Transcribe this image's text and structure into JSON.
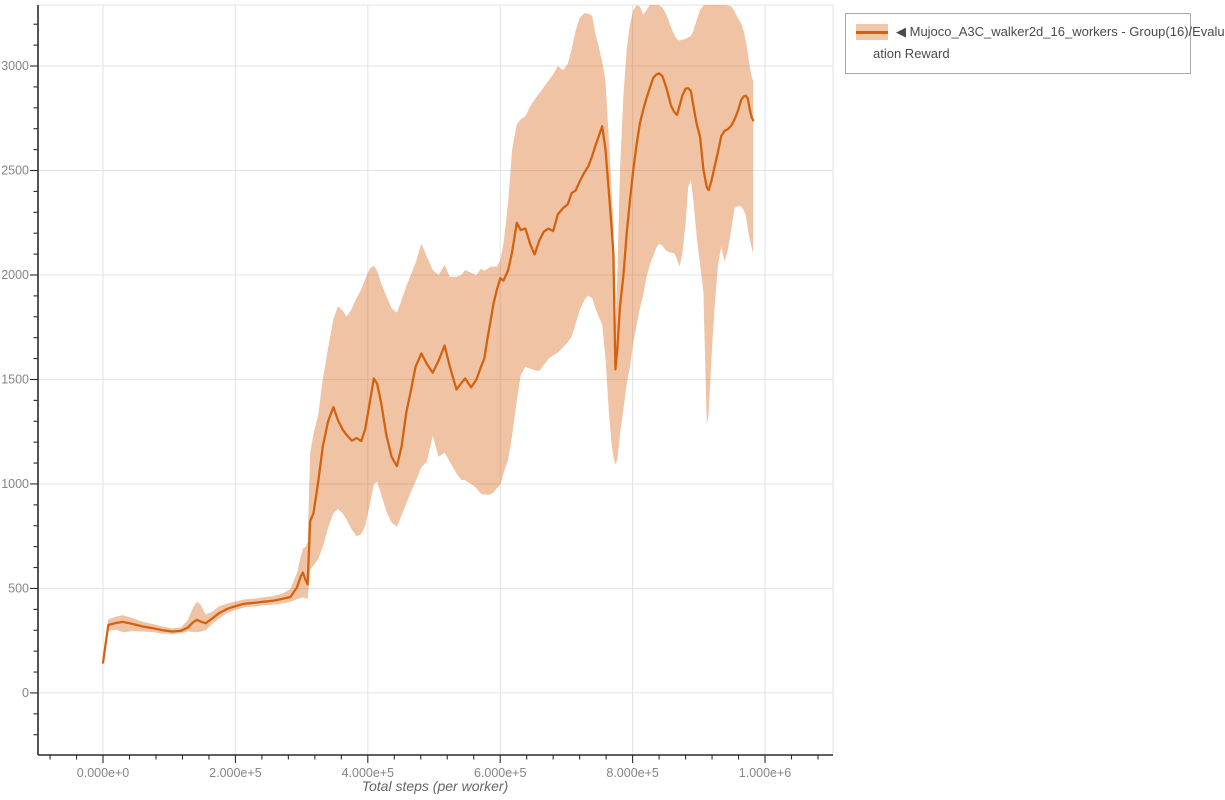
{
  "window": {
    "background": "#ffffff"
  },
  "legend": {
    "line1": "◀ Mujoco_A3C_walker2d_16_workers - Group(16)/Evalu",
    "line2": "ation Reward",
    "series_full_name": "Mujoco_A3C_walker2d_16_workers - Group(16)/Evaluation Reward",
    "border_color": "#a9a9a9"
  },
  "chart_data": {
    "type": "line",
    "title": "",
    "xlabel": "Total steps (per worker)",
    "ylabel": "",
    "x_range_steps": [
      -98200,
      1102700
    ],
    "y_range": [
      -297,
      3292
    ],
    "grid": true,
    "legend_position": "top-right",
    "colors": {
      "line": "#d4610e",
      "band": "rgba(213,97,14,0.38)",
      "grid": "#e3e3e3",
      "axis": "#2b2b2b",
      "tick_label": "#858585",
      "axis_title": "#666666"
    },
    "x_ticks": {
      "values": [
        0,
        200000,
        400000,
        600000,
        800000,
        1000000
      ],
      "labels": [
        "0.000e+0",
        "2.000e+5",
        "4.000e+5",
        "6.000e+5",
        "8.000e+5",
        "1.000e+6"
      ],
      "minor_start": -80000,
      "minor_end": 1080000,
      "minor_step": 40000
    },
    "y_ticks": {
      "values": [
        0,
        500,
        1000,
        1500,
        2000,
        2500,
        3000
      ],
      "labels": [
        "0",
        "500",
        "1000",
        "1500",
        "2000",
        "2500",
        "3000"
      ],
      "minor_start": -200,
      "minor_end": 3200,
      "minor_step": 100
    },
    "series": [
      {
        "name": "Mujoco_A3C_walker2d_16_workers - Group(16)/Evaluation Reward",
        "steps_unit": 1000,
        "points_ksteps_mean_lo_hi": [
          [
            0,
            145,
            140,
            152
          ],
          [
            8,
            325,
            298,
            352
          ],
          [
            20,
            335,
            302,
            366
          ],
          [
            30,
            340,
            290,
            372
          ],
          [
            45,
            330,
            296,
            358
          ],
          [
            60,
            318,
            294,
            340
          ],
          [
            75,
            310,
            291,
            330
          ],
          [
            90,
            300,
            284,
            318
          ],
          [
            105,
            294,
            281,
            309
          ],
          [
            118,
            298,
            286,
            314
          ],
          [
            128,
            312,
            294,
            348
          ],
          [
            136,
            338,
            292,
            408
          ],
          [
            142,
            350,
            290,
            437
          ],
          [
            148,
            341,
            294,
            420
          ],
          [
            155,
            333,
            300,
            376
          ],
          [
            165,
            356,
            330,
            388
          ],
          [
            175,
            381,
            356,
            414
          ],
          [
            188,
            403,
            383,
            428
          ],
          [
            200,
            415,
            397,
            438
          ],
          [
            213,
            427,
            409,
            447
          ],
          [
            227,
            431,
            414,
            451
          ],
          [
            242,
            436,
            419,
            457
          ],
          [
            258,
            442,
            423,
            464
          ],
          [
            272,
            451,
            429,
            477
          ],
          [
            283,
            459,
            436,
            498
          ],
          [
            293,
            505,
            448,
            575
          ],
          [
            299,
            560,
            455,
            655
          ],
          [
            302,
            576,
            458,
            690
          ],
          [
            306,
            540,
            452,
            700
          ],
          [
            309,
            520,
            450,
            720
          ],
          [
            313,
            823,
            590,
            1150
          ],
          [
            318,
            860,
            610,
            1240
          ],
          [
            325,
            1010,
            640,
            1330
          ],
          [
            332,
            1180,
            700,
            1500
          ],
          [
            340,
            1300,
            790,
            1650
          ],
          [
            348,
            1368,
            860,
            1790
          ],
          [
            355,
            1305,
            880,
            1850
          ],
          [
            362,
            1260,
            860,
            1830
          ],
          [
            368,
            1235,
            830,
            1800
          ],
          [
            376,
            1207,
            780,
            1840
          ],
          [
            383,
            1220,
            750,
            1890
          ],
          [
            390,
            1205,
            760,
            1930
          ],
          [
            396,
            1262,
            800,
            1980
          ],
          [
            403,
            1390,
            900,
            2030
          ],
          [
            409,
            1505,
            1000,
            2045
          ],
          [
            414,
            1480,
            1010,
            2020
          ],
          [
            420,
            1390,
            950,
            1960
          ],
          [
            428,
            1235,
            870,
            1900
          ],
          [
            436,
            1130,
            815,
            1840
          ],
          [
            444,
            1085,
            795,
            1820
          ],
          [
            451,
            1180,
            850,
            1880
          ],
          [
            458,
            1340,
            905,
            1945
          ],
          [
            465,
            1445,
            960,
            2000
          ],
          [
            472,
            1560,
            1010,
            2056
          ],
          [
            481,
            1625,
            1080,
            2150
          ],
          [
            489,
            1575,
            1105,
            2090
          ],
          [
            498,
            1532,
            1230,
            2024
          ],
          [
            507,
            1590,
            1130,
            2000
          ],
          [
            516,
            1662,
            1150,
            2048
          ],
          [
            524,
            1560,
            1105,
            1990
          ],
          [
            534,
            1452,
            1050,
            1992
          ],
          [
            541,
            1482,
            1020,
            2000
          ],
          [
            547,
            1505,
            1018,
            2024
          ],
          [
            556,
            1462,
            1000,
            2010
          ],
          [
            564,
            1500,
            980,
            2000
          ],
          [
            571,
            1560,
            952,
            2030
          ],
          [
            576,
            1600,
            950,
            2020
          ],
          [
            581,
            1700,
            948,
            2030
          ],
          [
            586,
            1790,
            950,
            2040
          ],
          [
            590,
            1865,
            960,
            2040
          ],
          [
            595,
            1930,
            980,
            2040
          ],
          [
            600,
            1984,
            995,
            2070
          ],
          [
            605,
            1973,
            1050,
            2150
          ],
          [
            612,
            2024,
            1120,
            2350
          ],
          [
            618,
            2110,
            1230,
            2600
          ],
          [
            625,
            2250,
            1400,
            2720
          ],
          [
            631,
            2215,
            1520,
            2745
          ],
          [
            638,
            2222,
            1560,
            2760
          ],
          [
            645,
            2150,
            1552,
            2805
          ],
          [
            652,
            2098,
            1545,
            2840
          ],
          [
            659,
            2165,
            1540,
            2870
          ],
          [
            666,
            2208,
            1570,
            2900
          ],
          [
            673,
            2222,
            1598,
            2930
          ],
          [
            680,
            2210,
            1615,
            2960
          ],
          [
            687,
            2290,
            1628,
            3000
          ],
          [
            695,
            2320,
            1655,
            2980
          ],
          [
            702,
            2338,
            1678,
            3010
          ],
          [
            708,
            2392,
            1705,
            3080
          ],
          [
            714,
            2405,
            1768,
            3170
          ],
          [
            720,
            2448,
            1832,
            3230
          ],
          [
            727,
            2490,
            1880,
            3253
          ],
          [
            733,
            2520,
            1902,
            3250
          ],
          [
            739,
            2570,
            1888,
            3240
          ],
          [
            744,
            2620,
            1840,
            3150
          ],
          [
            749,
            2665,
            1800,
            3090
          ],
          [
            754,
            2712,
            1762,
            3020
          ],
          [
            759,
            2600,
            1600,
            2930
          ],
          [
            764,
            2400,
            1350,
            2650
          ],
          [
            768,
            2240,
            1200,
            2420
          ],
          [
            771,
            2100,
            1130,
            2250
          ],
          [
            774,
            1548,
            1092,
            1750
          ],
          [
            777,
            1650,
            1115,
            2000
          ],
          [
            781,
            1850,
            1240,
            2500
          ],
          [
            786,
            1992,
            1350,
            2850
          ],
          [
            791,
            2200,
            1480,
            3080
          ],
          [
            796,
            2360,
            1560,
            3200
          ],
          [
            801,
            2505,
            1680,
            3268
          ],
          [
            806,
            2625,
            1760,
            3290
          ],
          [
            811,
            2726,
            1840,
            3285
          ],
          [
            816,
            2790,
            1905,
            3245
          ],
          [
            821,
            2846,
            1990,
            3268
          ],
          [
            826,
            2895,
            2048,
            3292
          ],
          [
            831,
            2942,
            2090,
            3292
          ],
          [
            836,
            2960,
            2130,
            3292
          ],
          [
            840,
            2965,
            2150,
            3292
          ],
          [
            845,
            2952,
            2140,
            3280
          ],
          [
            851,
            2895,
            2115,
            3245
          ],
          [
            858,
            2810,
            2106,
            3185
          ],
          [
            863,
            2780,
            2104,
            3150
          ],
          [
            867,
            2766,
            2075,
            3128
          ],
          [
            871,
            2810,
            2040,
            3122
          ],
          [
            875,
            2858,
            2100,
            3126
          ],
          [
            880,
            2892,
            2250,
            3130
          ],
          [
            884,
            2894,
            2420,
            3138
          ],
          [
            888,
            2880,
            2455,
            3142
          ],
          [
            892,
            2806,
            2350,
            3170
          ],
          [
            897,
            2720,
            2180,
            3220
          ],
          [
            902,
            2660,
            2048,
            3268
          ],
          [
            907,
            2505,
            1920,
            3290
          ],
          [
            912,
            2418,
            1280,
            3292
          ],
          [
            915,
            2406,
            1340,
            3292
          ],
          [
            919,
            2450,
            1600,
            3292
          ],
          [
            924,
            2520,
            1850,
            3292
          ],
          [
            929,
            2590,
            2050,
            3292
          ],
          [
            934,
            2665,
            2136,
            3292
          ],
          [
            939,
            2690,
            2064,
            3292
          ],
          [
            944,
            2698,
            2120,
            3290
          ],
          [
            949,
            2715,
            2220,
            3285
          ],
          [
            954,
            2745,
            2320,
            3262
          ],
          [
            959,
            2785,
            2330,
            3230
          ],
          [
            964,
            2838,
            2328,
            3204
          ],
          [
            968,
            2855,
            2310,
            3165
          ],
          [
            971,
            2858,
            2285,
            3120
          ],
          [
            974,
            2845,
            2222,
            3062
          ],
          [
            977,
            2790,
            2170,
            2995
          ],
          [
            980,
            2752,
            2128,
            2948
          ],
          [
            982,
            2740,
            2104,
            2928
          ]
        ]
      }
    ]
  }
}
